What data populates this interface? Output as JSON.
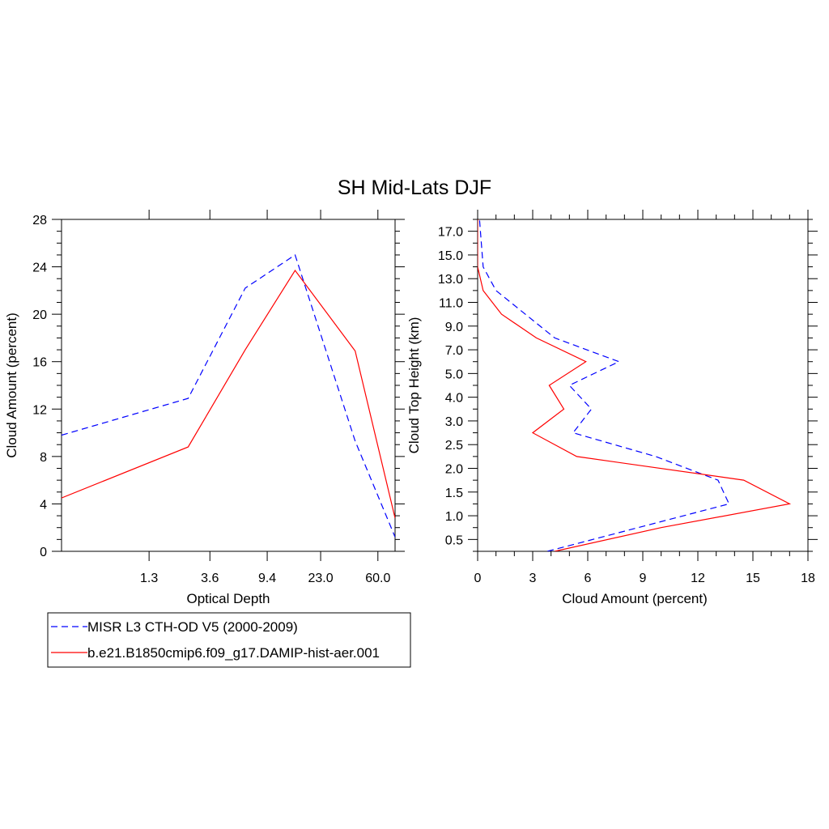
{
  "title": "SH Mid-Lats DJF",
  "chart_data": [
    {
      "type": "line",
      "xlabel": "Optical Depth",
      "ylabel": "Cloud Amount (percent)",
      "categories": [
        "0.3",
        "1.3",
        "2.5",
        "3.6",
        "6.5",
        "9.4",
        "15.0",
        "23.0",
        "41.0",
        "60.0",
        "80.0"
      ],
      "tick_labels_x": [
        "1.3",
        "3.6",
        "9.4",
        "23.0",
        "60.0"
      ],
      "ylim": [
        0,
        28
      ],
      "yticks": [
        0,
        4,
        8,
        12,
        16,
        20,
        24,
        28
      ],
      "y_minor_step": 1,
      "series": [
        {
          "name": "MISR L3 CTH-OD V5 (2000-2009)",
          "color": "#0000ff",
          "dash": "dashed",
          "x": [
            0.3,
            2.5,
            6.5,
            15.0,
            41.0,
            80.0
          ],
          "values": [
            9.8,
            12.9,
            22.2,
            25.0,
            9.3,
            1.2
          ]
        },
        {
          "name": "b.e21.B1850cmip6.f09_g17.DAMIP-hist-aer.001",
          "color": "#ff0000",
          "dash": "solid",
          "x": [
            0.3,
            2.5,
            6.5,
            15.0,
            41.0,
            80.0
          ],
          "values": [
            4.5,
            8.8,
            17.0,
            23.7,
            16.9,
            2.8
          ]
        }
      ]
    },
    {
      "type": "line",
      "orientation": "vertical-profile",
      "xlabel": "Cloud Amount (percent)",
      "ylabel": "Cloud Top Height (km)",
      "heights": [
        "0.25",
        "0.5",
        "0.75",
        "1.0",
        "1.25",
        "1.5",
        "1.75",
        "2.0",
        "2.25",
        "2.5",
        "2.75",
        "3.0",
        "3.5",
        "4.0",
        "4.5",
        "5.0",
        "6.0",
        "7.0",
        "8.0",
        "9.0",
        "10.0",
        "11.0",
        "12.0",
        "13.0",
        "14.0",
        "15.0",
        "16.0",
        "17.0",
        "18.0"
      ],
      "ytick_labels": [
        "0.5",
        "1.0",
        "1.5",
        "2.0",
        "2.5",
        "3.0",
        "4.0",
        "5.0",
        "7.0",
        "9.0",
        "11.0",
        "13.0",
        "15.0",
        "17.0"
      ],
      "xlim": [
        0,
        18
      ],
      "xticks": [
        0,
        3,
        6,
        9,
        12,
        15,
        18
      ],
      "x_minor_step": 1,
      "series": [
        {
          "name": "MISR L3 CTH-OD V5 (2000-2009)",
          "color": "#0000ff",
          "dash": "dashed",
          "level_index": [
            0,
            4,
            6,
            8,
            10,
            12,
            14,
            16,
            18,
            22,
            24,
            28
          ],
          "values": [
            3.8,
            13.7,
            13.1,
            9.7,
            5.2,
            6.2,
            5.0,
            7.7,
            4.2,
            1.0,
            0.3,
            0.1
          ]
        },
        {
          "name": "b.e21.B1850cmip6.f09_g17.DAMIP-hist-aer.001",
          "color": "#ff0000",
          "dash": "solid",
          "level_index": [
            0,
            2,
            4,
            6,
            8,
            10,
            12,
            14,
            16,
            18,
            20,
            22,
            24,
            28
          ],
          "values": [
            4.2,
            10.0,
            17.0,
            14.5,
            5.4,
            3.0,
            4.7,
            3.9,
            5.9,
            3.2,
            1.3,
            0.3,
            0.0,
            0.0
          ]
        }
      ]
    }
  ],
  "legend": {
    "items": [
      {
        "label": "MISR L3 CTH-OD V5 (2000-2009)",
        "color": "#0000ff",
        "dash": "dashed"
      },
      {
        "label": "b.e21.B1850cmip6.f09_g17.DAMIP-hist-aer.001",
        "color": "#ff0000",
        "dash": "solid"
      }
    ]
  }
}
